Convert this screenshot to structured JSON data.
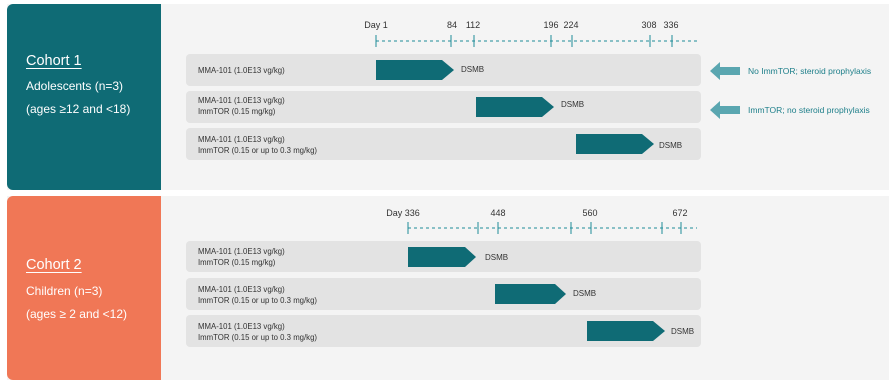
{
  "cohort1": {
    "title": "Cohort 1",
    "line1": "Adolescents (n=3)",
    "line2": "(ages ≥12 and <18)",
    "ticks": [
      "Day 1",
      "84",
      "112",
      "196",
      "224",
      "308",
      "336"
    ],
    "rows": [
      {
        "line1": "MMA-101 (1.0E13 vg/kg)",
        "line2": "",
        "milestone": "DSMB"
      },
      {
        "line1": "MMA-101 (1.0E13 vg/kg)",
        "line2": "ImmTOR (0.15 mg/kg)",
        "milestone": "DSMB"
      },
      {
        "line1": "MMA-101 (1.0E13 vg/kg)",
        "line2": "ImmTOR (0.15 or up to 0.3 mg/kg)",
        "milestone": "DSMB"
      }
    ],
    "notes": [
      "No ImmTOR; steroid prophylaxis",
      "ImmTOR; no steroid prophylaxis"
    ]
  },
  "cohort2": {
    "title": "Cohort 2",
    "line1": "Children (n=3)",
    "line2": "(ages ≥ 2 and <12)",
    "ticks": [
      "Day 336",
      "448",
      "560",
      "672"
    ],
    "rows": [
      {
        "line1": "MMA-101 (1.0E13 vg/kg)",
        "line2": "ImmTOR (0.15 mg/kg)",
        "milestone": "DSMB"
      },
      {
        "line1": "MMA-101 (1.0E13 vg/kg)",
        "line2": "ImmTOR (0.15 or up to 0.3 mg/kg)",
        "milestone": "DSMB"
      },
      {
        "line1": "MMA-101 (1.0E13 vg/kg)",
        "line2": "ImmTOR (0.15 or up to 0.3 mg/kg)",
        "milestone": "DSMB"
      }
    ]
  },
  "colors": {
    "teal": "#0f6b75",
    "coral": "#f07756",
    "bar": "#0f6b75",
    "note_arrow": "#5aa6b0"
  }
}
